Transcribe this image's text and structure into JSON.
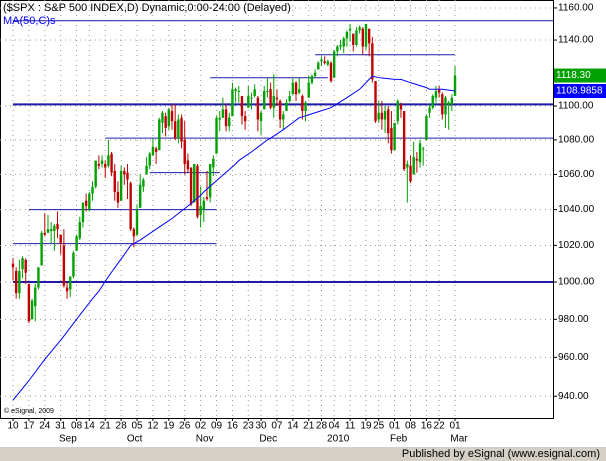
{
  "chart_data": {
    "type": "candlestick",
    "title": "($SPX : S&P 500 INDEX,D) Dynamic,0:00-24:00 (Delayed)",
    "copyright": "© eSignal, 2009",
    "categories": [
      "10",
      null,
      null,
      null,
      null,
      "17",
      null,
      null,
      null,
      null,
      "24",
      null,
      null,
      null,
      null,
      "31",
      null,
      null,
      null,
      null,
      "08",
      null,
      null,
      null,
      "14",
      null,
      null,
      null,
      null,
      "21",
      null,
      null,
      null,
      null,
      "28",
      null,
      null,
      null,
      null,
      "05",
      null,
      null,
      null,
      null,
      "12",
      null,
      null,
      null,
      null,
      "19",
      null,
      null,
      null,
      null,
      "26",
      null,
      null,
      null,
      null,
      "02",
      null,
      null,
      null,
      null,
      "09",
      null,
      null,
      null,
      null,
      "16",
      null,
      null,
      null,
      null,
      "23",
      null,
      null,
      null,
      "30",
      null,
      null,
      null,
      null,
      "07",
      null,
      null,
      null,
      null,
      "14",
      null,
      null,
      null,
      null,
      "21",
      null,
      null,
      null,
      "28",
      null,
      null,
      null,
      "04",
      null,
      null,
      null,
      null,
      "11",
      null,
      null,
      null,
      null,
      "19",
      null,
      null,
      null,
      "25",
      null,
      null,
      null,
      null,
      "01",
      null,
      null,
      null,
      null,
      "08",
      null,
      null,
      null,
      null,
      "16",
      null,
      null,
      null,
      "22",
      null,
      null,
      null,
      null,
      "01"
    ],
    "months": [
      {
        "label": "Sep",
        "at": 16
      },
      {
        "label": "Oct",
        "at": 37
      },
      {
        "label": "Nov",
        "at": 59
      },
      {
        "label": "Dec",
        "at": 79
      },
      {
        "label": "2010",
        "at": 101
      },
      {
        "label": "Feb",
        "at": 120
      },
      {
        "label": "Mar",
        "at": 139
      }
    ],
    "open": [
      1010,
      1006,
      994,
      1007,
      1012,
      999,
      980,
      987,
      997,
      1009,
      1027,
      1027,
      1028,
      1028,
      1032,
      1026,
      1020,
      997,
      996,
      1003,
      1017,
      1024,
      1033,
      1045,
      1040,
      1049,
      1053,
      1066,
      1066,
      1066,
      1065,
      1072,
      1062,
      1050,
      1045,
      1062,
      1061,
      1055,
      1029,
      1026,
      1041,
      1053,
      1060,
      1065,
      1071,
      1075,
      1074,
      1090,
      1094,
      1088,
      1097,
      1091,
      1081,
      1093,
      1080,
      1068,
      1064,
      1044,
      1065,
      1037,
      1040,
      1047,
      1047,
      1064,
      1072,
      1092,
      1093,
      1098,
      1088,
      1094,
      1109,
      1109,
      1106,
      1094,
      1099,
      1105,
      1106,
      1105,
      1091,
      1098,
      1109,
      1110,
      1099,
      1105,
      1103,
      1092,
      1097,
      1103,
      1107,
      1114,
      1108,
      1106,
      1097,
      1105,
      1114,
      1118,
      1122,
      1127,
      1127,
      1125,
      1126,
      1117,
      1133,
      1136,
      1136,
      1141,
      1146,
      1144,
      1137,
      1146,
      1147,
      1136,
      1147,
      1138,
      1115,
      1092,
      1096,
      1092,
      1098,
      1087,
      1074,
      1091,
      1101,
      1097,
      1064,
      1065,
      1060,
      1069,
      1067,
      1075,
      1080,
      1096,
      1099,
      1105,
      1110,
      1107,
      1095,
      1101,
      1101,
      1106
    ],
    "high": [
      1013,
      1008,
      1012,
      1014,
      1013,
      999,
      991,
      999,
      1008,
      1028,
      1038,
      1037,
      1033,
      1032,
      1039,
      1026,
      1029,
      1000,
      1003,
      1017,
      1026,
      1036,
      1044,
      1049,
      1050,
      1056,
      1068,
      1071,
      1071,
      1068,
      1080,
      1073,
      1066,
      1056,
      1065,
      1064,
      1066,
      1056,
      1030,
      1043,
      1060,
      1058,
      1070,
      1073,
      1081,
      1076,
      1093,
      1097,
      1096,
      1099,
      1101,
      1101,
      1095,
      1095,
      1091,
      1072,
      1064,
      1066,
      1066,
      1053,
      1047,
      1062,
      1066,
      1071,
      1094,
      1097,
      1105,
      1101,
      1096,
      1114,
      1111,
      1112,
      1106,
      1097,
      1112,
      1108,
      1113,
      1106,
      1097,
      1112,
      1117,
      1114,
      1119,
      1110,
      1104,
      1097,
      1104,
      1109,
      1117,
      1115,
      1117,
      1107,
      1103,
      1118,
      1119,
      1122,
      1127,
      1130,
      1130,
      1128,
      1127,
      1134,
      1137,
      1140,
      1142,
      1146,
      1150,
      1144,
      1148,
      1149,
      1148,
      1150,
      1147,
      1142,
      1115,
      1103,
      1103,
      1100,
      1100,
      1097,
      1090,
      1104,
      1102,
      1097,
      1068,
      1071,
      1079,
      1073,
      1080,
      1076,
      1095,
      1101,
      1107,
      1112,
      1112,
      1108,
      1106,
      1103,
      1107,
      1124
    ],
    "low": [
      1001,
      991,
      991,
      1002,
      999,
      978,
      980,
      979,
      996,
      1009,
      1025,
      1027,
      1021,
      1017,
      1024,
      1015,
      997,
      991,
      992,
      1002,
      1017,
      1023,
      1030,
      1039,
      1039,
      1045,
      1052,
      1063,
      1064,
      1058,
      1064,
      1059,
      1045,
      1041,
      1045,
      1054,
      1046,
      1028,
      1019,
      1025,
      1041,
      1050,
      1060,
      1063,
      1071,
      1066,
      1074,
      1084,
      1082,
      1086,
      1086,
      1080,
      1078,
      1075,
      1060,
      1061,
      1042,
      1044,
      1035,
      1030,
      1033,
      1045,
      1044,
      1059,
      1072,
      1085,
      1093,
      1085,
      1085,
      1094,
      1102,
      1102,
      1089,
      1086,
      1099,
      1098,
      1105,
      1085,
      1083,
      1098,
      1105,
      1098,
      1093,
      1100,
      1087,
      1086,
      1097,
      1102,
      1107,
      1103,
      1107,
      1092,
      1091,
      1105,
      1113,
      1117,
      1122,
      1124,
      1125,
      1124,
      1114,
      1117,
      1130,
      1134,
      1132,
      1136,
      1139,
      1133,
      1136,
      1144,
      1131,
      1134,
      1130,
      1114,
      1090,
      1090,
      1086,
      1084,
      1078,
      1072,
      1074,
      1089,
      1093,
      1062,
      1044,
      1055,
      1060,
      1061,
      1064,
      1065,
      1080,
      1093,
      1098,
      1102,
      1105,
      1092,
      1087,
      1086,
      1097,
      1106
    ],
    "close": [
      1008,
      994,
      1006,
      1013,
      1005,
      979,
      990,
      997,
      1008,
      1027,
      1026,
      1029,
      1029,
      1031,
      1029,
      1021,
      998,
      995,
      1003,
      1016,
      1025,
      1033,
      1044,
      1042,
      1049,
      1053,
      1068,
      1065,
      1068,
      1064,
      1071,
      1061,
      1050,
      1044,
      1062,
      1060,
      1057,
      1029,
      1025,
      1040,
      1054,
      1057,
      1065,
      1072,
      1076,
      1073,
      1092,
      1096,
      1087,
      1098,
      1091,
      1081,
      1092,
      1079,
      1066,
      1063,
      1043,
      1066,
      1036,
      1042,
      1045,
      1046,
      1066,
      1069,
      1093,
      1093,
      1098,
      1088,
      1093,
      1110,
      1110,
      1109,
      1094,
      1091,
      1106,
      1105,
      1110,
      1092,
      1096,
      1109,
      1109,
      1099,
      1106,
      1104,
      1092,
      1095,
      1102,
      1106,
      1114,
      1107,
      1110,
      1097,
      1102,
      1114,
      1118,
      1120,
      1126,
      1128,
      1126,
      1127,
      1115,
      1133,
      1136,
      1137,
      1141,
      1145,
      1147,
      1137,
      1146,
      1148,
      1136,
      1150,
      1138,
      1116,
      1091,
      1096,
      1092,
      1097,
      1084,
      1074,
      1090,
      1103,
      1098,
      1063,
      1066,
      1056,
      1070,
      1068,
      1078,
      1075,
      1094,
      1099,
      1106,
      1109,
      1108,
      1095,
      1105,
      1102,
      1105,
      1118.3
    ],
    "close_label": "1118.30",
    "up_color": "#00a000",
    "down_color": "#c00000",
    "ma": {
      "name": "MA(50,C)s",
      "color": "#0000ff",
      "x": [
        0,
        5,
        10,
        15,
        20,
        25,
        27,
        30,
        35,
        37,
        40,
        45,
        50,
        55,
        59,
        60,
        65,
        70,
        71,
        75,
        80,
        81,
        85,
        90,
        95,
        100,
        105,
        109,
        110,
        113,
        115,
        120,
        122,
        125,
        130,
        131,
        135,
        139
      ],
      "values": [
        938,
        948,
        959,
        969,
        980,
        991,
        995,
        1003,
        1015,
        1020,
        1023,
        1029,
        1035,
        1042,
        1048,
        1050,
        1058,
        1066,
        1068,
        1073,
        1080,
        1081,
        1086,
        1093,
        1096,
        1099,
        1105,
        1110,
        1112,
        1118,
        1117,
        1116,
        1116,
        1114,
        1111,
        1110,
        1110,
        1108.9858
      ],
      "value_label": "1108.9858"
    },
    "levels": [
      {
        "value": 1152,
        "from": 0,
        "to": 170,
        "thick": false
      },
      {
        "value": 1131,
        "from": 95,
        "to": 139,
        "thick": false
      },
      {
        "value": 1117,
        "from": 62,
        "to": 99,
        "thick": false
      },
      {
        "value": 1101,
        "from": 0,
        "to": 170,
        "thick": true
      },
      {
        "value": 1081,
        "from": 29,
        "to": 170,
        "thick": false
      },
      {
        "value": 1061,
        "from": 43,
        "to": 65,
        "thick": false
      },
      {
        "value": 1040,
        "from": 5,
        "to": 64,
        "thick": false
      },
      {
        "value": 1021,
        "from": 0,
        "to": 64,
        "thick": false
      },
      {
        "value": 1000,
        "from": 0,
        "to": 170,
        "thick": true
      }
    ],
    "level_color": "#1c1ca8",
    "ylim": [
      929,
      1165
    ],
    "log_scale": true,
    "grid": true,
    "yticks": [
      {
        "value": 1160,
        "label": "1160.00"
      },
      {
        "value": 1140,
        "label": "1140.00"
      },
      {
        "value": 1100,
        "label": "1100.00"
      },
      {
        "value": 1080,
        "label": "1080.00"
      },
      {
        "value": 1060,
        "label": "1060.00"
      },
      {
        "value": 1040,
        "label": "1040.00"
      },
      {
        "value": 1020,
        "label": "1020.00"
      },
      {
        "value": 1000,
        "label": "1000.00"
      },
      {
        "value": 980,
        "label": "980.00"
      },
      {
        "value": 960,
        "label": "960.00"
      },
      {
        "value": 940,
        "label": "940.00"
      }
    ]
  },
  "footer": "Published by eSignal (www.esignal.com)"
}
